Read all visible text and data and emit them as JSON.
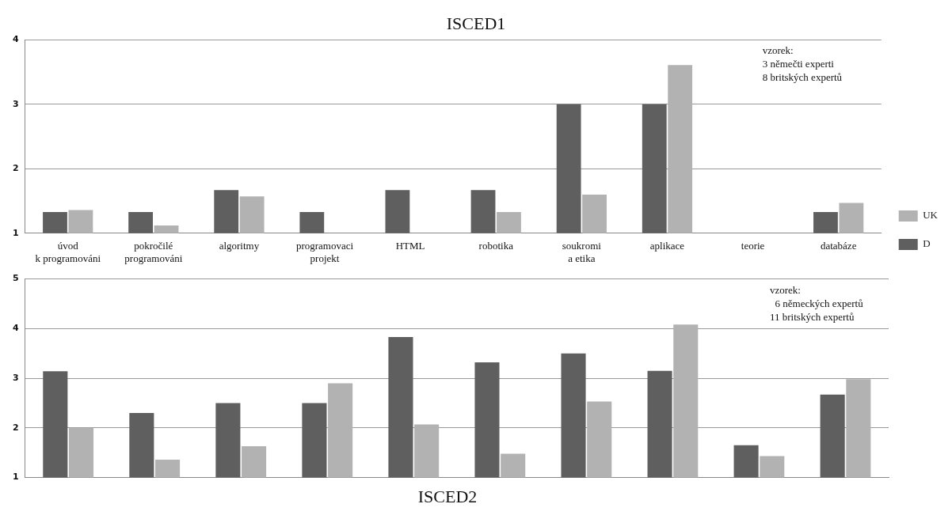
{
  "chart_data": [
    {
      "type": "bar",
      "title": "ISCED1",
      "categories": [
        "úvod\nk programováni",
        "pokročilé\nprogramováni",
        "algoritmy",
        "programovaci\nprojekt",
        "HTML",
        "robotika",
        "soukromi\na etika",
        "aplikace",
        "teorie",
        "databáze"
      ],
      "series": [
        {
          "name": "D",
          "color": "#5f5f5f",
          "values": [
            1.33,
            1.33,
            1.67,
            1.33,
            1.67,
            1.67,
            3.0,
            3.0,
            null,
            1.33
          ]
        },
        {
          "name": "UK",
          "color": "#b2b2b2",
          "values": [
            1.36,
            1.12,
            1.57,
            null,
            null,
            1.33,
            1.6,
            3.61,
            null,
            1.47
          ]
        }
      ],
      "ylim": [
        1,
        4
      ],
      "yticks": [
        1,
        2,
        3,
        4
      ],
      "grid": "y",
      "legend": "right",
      "annotations": [
        "vzorek:\n3 němečti experti\n8 britských expertů"
      ]
    },
    {
      "type": "bar",
      "title": "ISCED2",
      "categories": [
        null,
        null,
        null,
        null,
        null,
        null,
        null,
        null,
        null,
        null
      ],
      "series": [
        {
          "color": "#5f5f5f",
          "values": [
            3.14,
            2.3,
            2.5,
            2.5,
            3.83,
            3.32,
            3.5,
            3.15,
            1.65,
            2.67
          ]
        },
        {
          "color": "#b2b2b2",
          "values": [
            2.0,
            1.36,
            1.63,
            2.9,
            2.07,
            1.48,
            2.53,
            4.08,
            1.43,
            2.98
          ]
        }
      ],
      "ylim": [
        1,
        5
      ],
      "yticks": [
        1,
        2,
        3,
        4,
        5
      ],
      "grid": "y",
      "tick_labels": "y",
      "annotations": [
        "vzorek:\n  6 německých expertů\n11 britských expertů"
      ]
    }
  ]
}
